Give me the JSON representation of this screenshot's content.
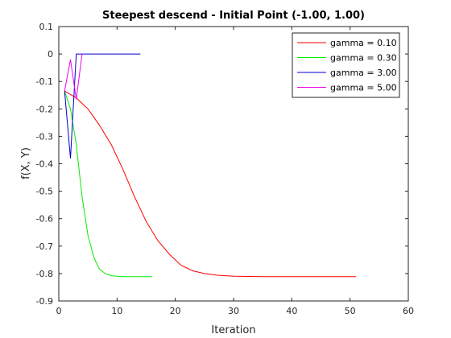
{
  "chart_data": {
    "type": "line",
    "title": "Steepest descend - Initial Point (-1.00, 1.00)",
    "xlabel": "Iteration",
    "ylabel": "f(X, Y)",
    "xlim": [
      0,
      60
    ],
    "ylim": [
      -0.9,
      0.1
    ],
    "xticks": [
      0,
      10,
      20,
      30,
      40,
      50,
      60
    ],
    "yticks": [
      0.1,
      0,
      -0.1,
      -0.2,
      -0.3,
      -0.4,
      -0.5,
      -0.6,
      -0.7,
      -0.8,
      -0.9
    ],
    "xtick_labels": [
      "0",
      "10",
      "20",
      "30",
      "40",
      "50",
      "60"
    ],
    "ytick_labels": [
      "0.1",
      "0",
      "-0.1",
      "-0.2",
      "-0.3",
      "-0.4",
      "-0.5",
      "-0.6",
      "-0.7",
      "-0.8",
      "-0.9"
    ],
    "grid": false,
    "legend_position": "top-right",
    "series": [
      {
        "name": "gamma = 0.10",
        "color": "#ff0000",
        "x": [
          1,
          3,
          5,
          7,
          9,
          11,
          13,
          15,
          17,
          19,
          21,
          23,
          25,
          27,
          30,
          35,
          40,
          45,
          51
        ],
        "y": [
          -0.135,
          -0.16,
          -0.2,
          -0.26,
          -0.33,
          -0.42,
          -0.52,
          -0.61,
          -0.68,
          -0.73,
          -0.77,
          -0.79,
          -0.8,
          -0.806,
          -0.81,
          -0.811,
          -0.811,
          -0.811,
          -0.811
        ]
      },
      {
        "name": "gamma = 0.30",
        "color": "#00ee00",
        "x": [
          1,
          2,
          3,
          4,
          5,
          6,
          7,
          8,
          9,
          10,
          11,
          12,
          14,
          16
        ],
        "y": [
          -0.135,
          -0.2,
          -0.33,
          -0.52,
          -0.66,
          -0.74,
          -0.785,
          -0.8,
          -0.808,
          -0.81,
          -0.811,
          -0.811,
          -0.811,
          -0.811
        ]
      },
      {
        "name": "gamma = 3.00",
        "color": "#0000cc",
        "x": [
          1,
          2,
          3,
          4,
          5,
          6,
          7,
          8,
          9,
          10,
          11,
          12,
          13,
          14
        ],
        "y": [
          -0.135,
          -0.38,
          0.0,
          0.0,
          0.0,
          0.0,
          0.0,
          0.0,
          0.0,
          0.0,
          0.0,
          0.0,
          0.0,
          0.0
        ]
      },
      {
        "name": "gamma = 5.00",
        "color": "#ee00ee",
        "x": [
          1,
          2,
          3,
          4
        ],
        "y": [
          -0.135,
          -0.02,
          -0.165,
          0.0
        ]
      }
    ]
  }
}
